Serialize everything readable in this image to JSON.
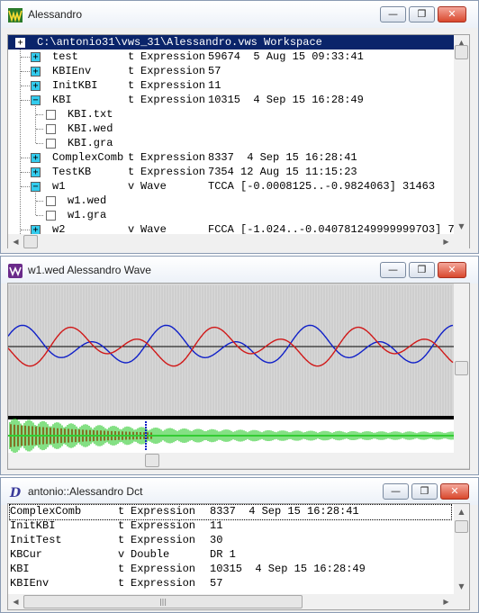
{
  "tree_window": {
    "title": "Alessandro",
    "buttons": {
      "minimize": "—",
      "restore": "❐",
      "close": "✕"
    },
    "root": {
      "expander": "+",
      "label": "C:\\antonio31\\vws_31\\Alessandro.vws Workspace"
    },
    "rows": [
      {
        "expander": "+",
        "name": "test",
        "kind": "t",
        "type": "Expression",
        "info": "59674  5 Aug 15 09:33:41"
      },
      {
        "expander": "+",
        "name": "KBIEnv",
        "kind": "t",
        "type": "Expression",
        "info": "57"
      },
      {
        "expander": "+",
        "name": "InitKBI",
        "kind": "t",
        "type": "Expression",
        "info": "11"
      },
      {
        "expander": "−",
        "name": "KBI",
        "kind": "t",
        "type": "Expression",
        "info": "10315  4 Sep 15 16:28:49"
      },
      {
        "leaf": true,
        "name": "KBI.txt"
      },
      {
        "leaf": true,
        "name": "KBI.wed"
      },
      {
        "leaf": true,
        "name": "KBI.gra"
      },
      {
        "expander": "+",
        "name": "ComplexComb",
        "kind": "t",
        "type": "Expression",
        "info": "8337  4 Sep 15 16:28:41"
      },
      {
        "expander": "+",
        "name": "TestKB",
        "kind": "t",
        "type": "Expression",
        "info": "7354 12 Aug 15 11:15:23"
      },
      {
        "expander": "−",
        "name": "w1",
        "kind": "v",
        "type": "Wave",
        "info": "TCCA [-0.0008125..-0.9824063] 31463"
      },
      {
        "leaf": true,
        "name": "w1.wed"
      },
      {
        "leaf": true,
        "name": "w1.gra"
      },
      {
        "expander": "+",
        "name": "w2",
        "kind": "v",
        "type": "Wave",
        "info": "FCCA [-1.024..-0.0407812499999997O3] 7"
      }
    ]
  },
  "wave_window": {
    "title": "w1.wed Alessandro Wave",
    "buttons": {
      "minimize": "—",
      "restore": "❐",
      "close": "✕"
    },
    "colors": {
      "series_a": "#1020c8",
      "series_b": "#d01818",
      "baseline": "#000000",
      "envelope": "#33cc33"
    }
  },
  "dct_window": {
    "title": "antonio::Alessandro Dct",
    "buttons": {
      "minimize": "—",
      "restore": "❐",
      "close": "✕"
    },
    "rows": [
      {
        "name": "ComplexComb",
        "kind": "t",
        "type": "Expression",
        "info": "8337  4 Sep 15 16:28:41"
      },
      {
        "name": "InitKBI",
        "kind": "t",
        "type": "Expression",
        "info": "11"
      },
      {
        "name": "InitTest",
        "kind": "t",
        "type": "Expression",
        "info": "30"
      },
      {
        "name": "KBCur",
        "kind": "v",
        "type": "Double",
        "info": "DR 1"
      },
      {
        "name": "KBI",
        "kind": "t",
        "type": "Expression",
        "info": "10315  4 Sep 15 16:28:49"
      },
      {
        "name": "KBIEnv",
        "kind": "t",
        "type": "Expression",
        "info": "57"
      }
    ]
  },
  "scroll_glyphs": {
    "up": "▲",
    "down": "▼",
    "left": "◀",
    "right": "▶",
    "grip": "|||"
  }
}
